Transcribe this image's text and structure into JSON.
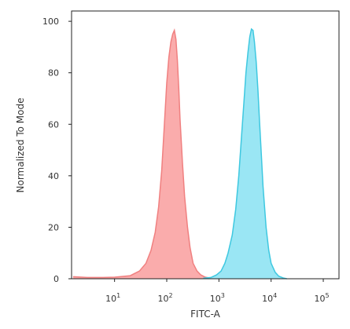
{
  "chart_data": {
    "type": "area",
    "xlabel": "FITC-A",
    "ylabel": "Normalized To Mode",
    "x_scale": "log",
    "xlim": [
      1.5,
      200000
    ],
    "ylim": [
      0,
      104
    ],
    "x_ticks": [
      {
        "value": 10,
        "base": "10",
        "exp": "1"
      },
      {
        "value": 100,
        "base": "10",
        "exp": "2"
      },
      {
        "value": 1000,
        "base": "10",
        "exp": "3"
      },
      {
        "value": 10000,
        "base": "10",
        "exp": "4"
      },
      {
        "value": 100000,
        "base": "10",
        "exp": "5"
      }
    ],
    "y_ticks": [
      0,
      20,
      40,
      60,
      80,
      100
    ],
    "grid": false,
    "legend": "none",
    "series": [
      {
        "color": "#f08080",
        "fill": "#f9a3a3",
        "x": [
          1.6,
          3,
          6,
          10,
          20,
          30,
          40,
          50,
          60,
          70,
          80,
          90,
          100,
          110,
          120,
          130,
          140,
          150,
          160,
          170,
          180,
          200,
          220,
          250,
          280,
          320,
          380,
          450,
          550,
          700
        ],
        "y": [
          0.8,
          0.5,
          0.5,
          0.6,
          1.2,
          3,
          6,
          11,
          18,
          28,
          42,
          60,
          76,
          86,
          92,
          95,
          96.5,
          93,
          85,
          74,
          62,
          45,
          32,
          20,
          12,
          6,
          3,
          1.5,
          0.6,
          0.2
        ]
      },
      {
        "color": "#3ec8e0",
        "fill": "#8fe3f3",
        "x": [
          500,
          700,
          900,
          1100,
          1300,
          1500,
          1800,
          2100,
          2400,
          2700,
          3000,
          3300,
          3600,
          3900,
          4200,
          4500,
          4800,
          5200,
          5600,
          6000,
          6500,
          7000,
          8000,
          9000,
          10000,
          12000,
          14000,
          17000,
          20000
        ],
        "y": [
          0.2,
          0.5,
          1.5,
          3,
          6,
          10,
          17,
          27,
          40,
          55,
          68,
          80,
          88,
          94,
          97,
          96.5,
          92,
          84,
          73,
          61,
          48,
          36,
          20,
          11,
          6,
          2.5,
          1,
          0.3,
          0
        ]
      }
    ]
  }
}
